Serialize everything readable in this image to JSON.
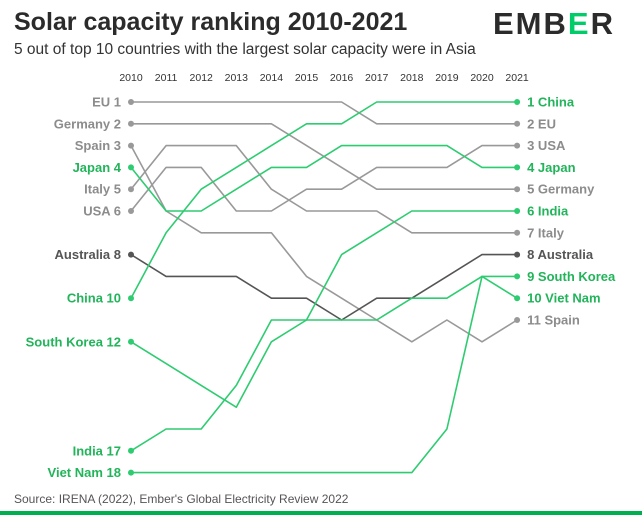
{
  "title": "Solar capacity ranking 2010-2021",
  "subtitle": "5 out of top 10 countries with the largest solar capacity were in Asia",
  "logo": {
    "prefix": "EMB",
    "accent": "E",
    "suffix": "R"
  },
  "source": "Source: IRENA (2022), Ember's Global Electricity Review 2022",
  "colors": {
    "asia": "#2ecc71",
    "asia_text": "#22b45a",
    "other": "#999999",
    "other_text": "#8c8c8c",
    "australia": "#555555",
    "title": "#2b2b2b"
  },
  "chart_data": {
    "type": "line",
    "title": "Solar capacity ranking 2010-2021",
    "xlabel": "",
    "ylabel": "",
    "x": [
      "2010",
      "2011",
      "2012",
      "2013",
      "2014",
      "2015",
      "2016",
      "2017",
      "2018",
      "2019",
      "2020",
      "2021"
    ],
    "y_inverted": true,
    "ylim": [
      1,
      18
    ],
    "grid": false,
    "series": [
      {
        "name": "EU",
        "group": "other",
        "start_label": "EU 1",
        "end_label": "2 EU",
        "values": [
          1,
          1,
          1,
          1,
          1,
          1,
          1,
          2,
          2,
          2,
          2,
          2
        ]
      },
      {
        "name": "Germany",
        "group": "other",
        "start_label": "Germany 2",
        "end_label": "5 Germany",
        "values": [
          2,
          2,
          2,
          2,
          2,
          3,
          4,
          5,
          5,
          5,
          5,
          5
        ]
      },
      {
        "name": "Spain",
        "group": "other",
        "start_label": "Spain 3",
        "end_label": "11 Spain",
        "values": [
          3,
          6,
          7,
          7,
          7,
          9,
          10,
          11,
          12,
          11,
          12,
          11
        ]
      },
      {
        "name": "Japan",
        "group": "asia",
        "start_label": "Japan 4",
        "end_label": "4 Japan",
        "values": [
          4,
          6,
          6,
          5,
          4,
          4,
          3,
          3,
          3,
          3,
          4,
          4
        ]
      },
      {
        "name": "Italy",
        "group": "other",
        "start_label": "Italy 5",
        "end_label": "7 Italy",
        "values": [
          5,
          3,
          3,
          3,
          5,
          6,
          6,
          6,
          7,
          7,
          7,
          7
        ]
      },
      {
        "name": "USA",
        "group": "other",
        "start_label": "USA 6",
        "end_label": "3 USA",
        "values": [
          6,
          4,
          4,
          6,
          6,
          5,
          5,
          4,
          4,
          4,
          3,
          3
        ]
      },
      {
        "name": "Australia",
        "group": "australia",
        "start_label": "Australia 8",
        "end_label": "8 Australia",
        "values": [
          8,
          9,
          9,
          9,
          10,
          10,
          11,
          10,
          10,
          9,
          8,
          8
        ]
      },
      {
        "name": "China",
        "group": "asia",
        "start_label": "China 10",
        "end_label": "1 China",
        "values": [
          10,
          7,
          5,
          4,
          3,
          2,
          2,
          1,
          1,
          1,
          1,
          1
        ]
      },
      {
        "name": "South Korea",
        "group": "asia",
        "start_label": "South Korea 12",
        "end_label": "9 South Korea",
        "values": [
          12,
          13,
          14,
          15,
          12,
          11,
          11,
          11,
          10,
          10,
          9,
          9
        ]
      },
      {
        "name": "India",
        "group": "asia",
        "start_label": "India 17",
        "end_label": "6 India",
        "values": [
          17,
          16,
          16,
          14,
          11,
          11,
          8,
          7,
          6,
          6,
          6,
          6
        ]
      },
      {
        "name": "Viet Nam",
        "group": "asia",
        "start_label": "Viet Nam 18",
        "end_label": "10 Viet Nam",
        "values": [
          18,
          18,
          18,
          18,
          18,
          18,
          18,
          18,
          18,
          16,
          9,
          10
        ]
      }
    ]
  }
}
